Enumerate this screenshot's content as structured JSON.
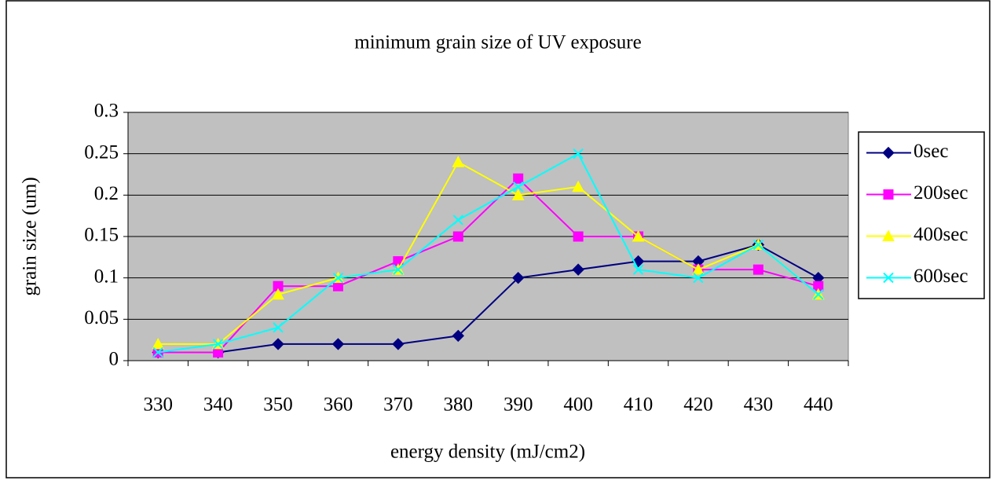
{
  "chart_data": {
    "type": "line",
    "title": "minimum grain size of UV exposure",
    "xlabel": "energy density (mJ/cm2)",
    "ylabel": "grain size (um)",
    "categories": [
      "330",
      "340",
      "350",
      "360",
      "370",
      "380",
      "390",
      "400",
      "410",
      "420",
      "430",
      "440"
    ],
    "series": [
      {
        "name": "0sec",
        "color": "#000080",
        "marker": "diamond",
        "values": [
          0.01,
          0.01,
          0.02,
          0.02,
          0.02,
          0.03,
          0.1,
          0.11,
          0.12,
          0.12,
          0.14,
          0.1
        ]
      },
      {
        "name": "200sec",
        "color": "#ff00ff",
        "marker": "square",
        "values": [
          0.01,
          0.01,
          0.09,
          0.09,
          0.12,
          0.15,
          0.22,
          0.15,
          0.15,
          0.11,
          0.11,
          0.09
        ]
      },
      {
        "name": "400sec",
        "color": "#ffff00",
        "marker": "triangle",
        "values": [
          0.02,
          0.02,
          0.08,
          0.1,
          0.11,
          0.24,
          0.2,
          0.21,
          0.15,
          0.11,
          0.14,
          0.08
        ]
      },
      {
        "name": "600sec",
        "color": "#00ffff",
        "marker": "x",
        "values": [
          0.01,
          0.02,
          0.04,
          0.1,
          0.11,
          0.17,
          0.21,
          0.25,
          0.11,
          0.1,
          0.14,
          0.08
        ]
      }
    ],
    "ylim": [
      0,
      0.3
    ],
    "yticks": [
      0,
      0.05,
      0.1,
      0.15,
      0.2,
      0.25,
      0.3
    ],
    "grid": true,
    "legend": "right",
    "plot_background": "#c0c0c0"
  }
}
